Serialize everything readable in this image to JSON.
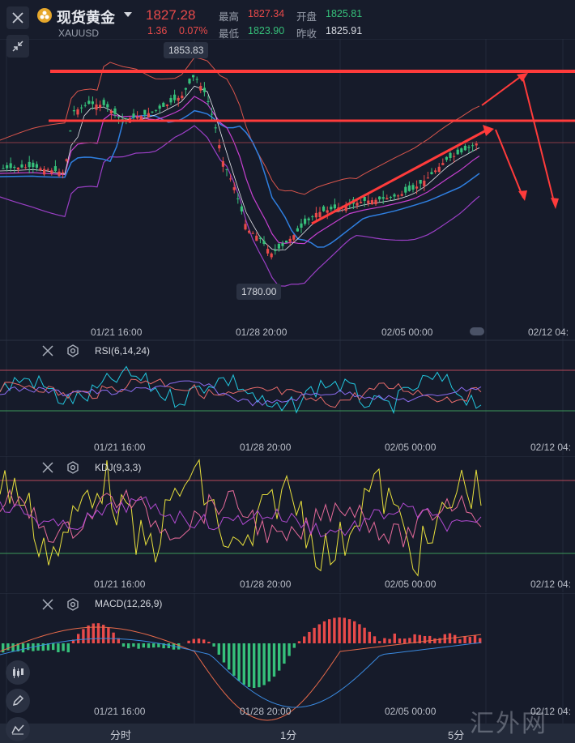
{
  "header": {
    "symbol_name": "现货黄金",
    "symbol_code": "XAUUSD",
    "price": "1827.28",
    "change": "1.36",
    "change_pct": "0.07%",
    "high_label": "最高",
    "high": "1827.34",
    "low_label": "最低",
    "low": "1823.90",
    "open_label": "开盘",
    "open": "1825.81",
    "prev_close_label": "昨收",
    "prev_close": "1825.91"
  },
  "main_chart": {
    "high_marker": "1853.83",
    "low_marker": "1780.00"
  },
  "x_ticks": [
    "01/21 16:00",
    "01/28 20:00",
    "02/05 00:00",
    "02/12 04:"
  ],
  "indicators": {
    "rsi_title": "RSI(6,14,24)",
    "kdj_title": "KDJ(9,3,3)",
    "macd_title": "MACD(12,26,9)"
  },
  "timeframes": [
    "分时",
    "1分",
    "5分"
  ],
  "watermark": "汇外网",
  "colors": {
    "up": "#e84a4a",
    "down": "#36c07a",
    "bg": "#161b2a",
    "arrow": "#ff3b3b"
  },
  "icons": [
    "close-icon",
    "shrink-icon",
    "settings-icon",
    "candles-icon",
    "pencil-icon",
    "indicator-icon",
    "caret-down-icon",
    "coin-icon"
  ]
}
